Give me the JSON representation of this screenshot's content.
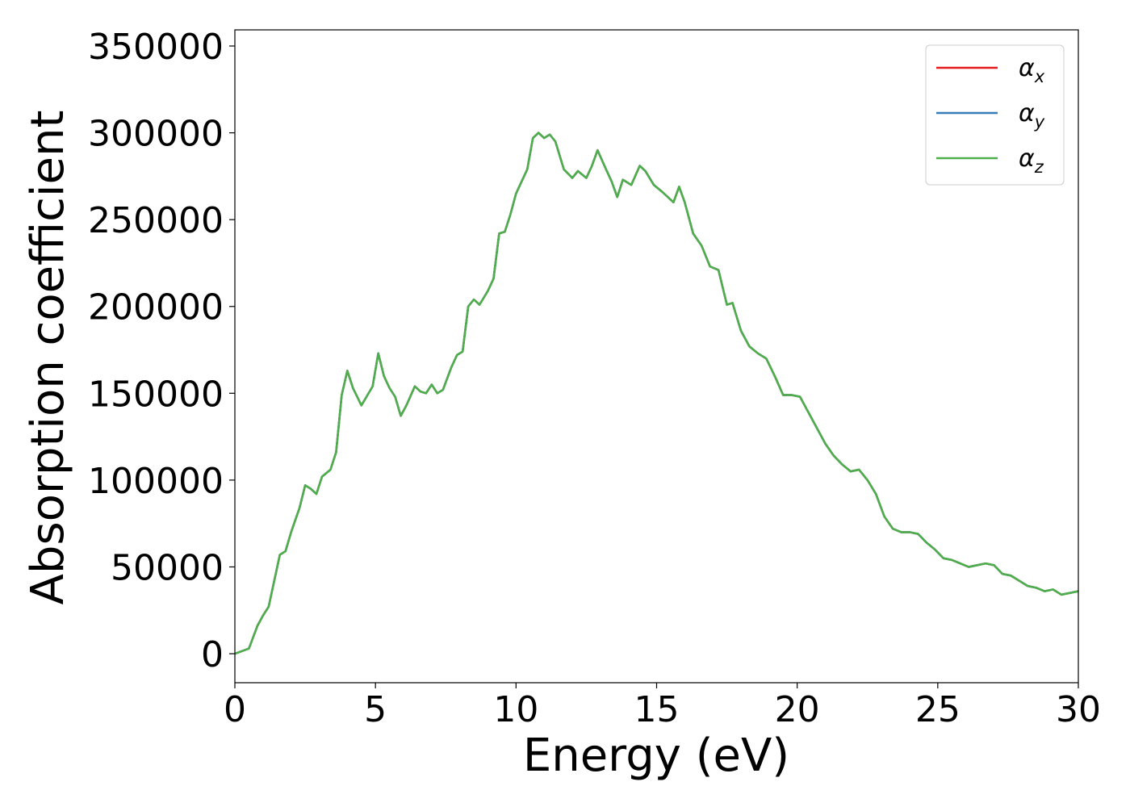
{
  "chart_data": {
    "type": "line",
    "xlabel": "Energy (eV)",
    "ylabel": "Absorption coefficient",
    "x": [
      0,
      0.5,
      0.8,
      1.0,
      1.2,
      1.4,
      1.6,
      1.8,
      2.0,
      2.3,
      2.5,
      2.7,
      2.9,
      3.1,
      3.4,
      3.6,
      3.8,
      4.0,
      4.2,
      4.5,
      4.9,
      5.1,
      5.3,
      5.5,
      5.7,
      5.9,
      6.1,
      6.4,
      6.6,
      6.8,
      7.0,
      7.2,
      7.4,
      7.7,
      7.9,
      8.1,
      8.3,
      8.5,
      8.7,
      9.0,
      9.2,
      9.4,
      9.6,
      9.8,
      10.0,
      10.2,
      10.4,
      10.6,
      10.8,
      11.0,
      11.2,
      11.4,
      11.7,
      12.0,
      12.2,
      12.5,
      12.7,
      12.9,
      13.2,
      13.4,
      13.6,
      13.8,
      14.1,
      14.4,
      14.6,
      14.9,
      15.2,
      15.6,
      15.8,
      16.0,
      16.3,
      16.6,
      16.9,
      17.2,
      17.5,
      17.7,
      18.0,
      18.3,
      18.6,
      18.9,
      19.2,
      19.5,
      19.8,
      20.1,
      20.4,
      20.7,
      21.0,
      21.3,
      21.6,
      21.9,
      22.2,
      22.5,
      22.8,
      23.1,
      23.4,
      23.7,
      24.0,
      24.3,
      24.6,
      24.9,
      25.2,
      25.5,
      25.8,
      26.1,
      26.4,
      26.7,
      27.0,
      27.3,
      27.6,
      27.9,
      28.2,
      28.5,
      28.8,
      29.1,
      29.4,
      29.7,
      30.0
    ],
    "series": [
      {
        "name": "αx",
        "color": "#e41a1c",
        "values": [
          0,
          3000,
          16000,
          22000,
          27000,
          42000,
          57000,
          59000,
          70000,
          84000,
          97000,
          95000,
          92000,
          102000,
          106000,
          116000,
          149000,
          163000,
          153000,
          143000,
          154000,
          173000,
          160000,
          153000,
          148000,
          137000,
          143000,
          154000,
          151000,
          150000,
          155000,
          150000,
          152000,
          165000,
          172000,
          174000,
          200000,
          204000,
          201000,
          209000,
          216000,
          242000,
          243000,
          253000,
          265000,
          272000,
          279000,
          297000,
          300000,
          297000,
          299000,
          295000,
          279000,
          274000,
          278000,
          274000,
          281000,
          290000,
          279000,
          272000,
          263000,
          273000,
          270000,
          281000,
          278000,
          270000,
          266000,
          260000,
          269000,
          260000,
          242000,
          235000,
          223000,
          221000,
          201000,
          202000,
          186000,
          177000,
          173000,
          170000,
          160000,
          149000,
          149000,
          148000,
          139000,
          130000,
          121000,
          114000,
          109000,
          105000,
          106000,
          100000,
          92000,
          79000,
          72000,
          70000,
          70000,
          69000,
          64000,
          60000,
          55000,
          54000,
          52000,
          50000,
          51000,
          52000,
          51000,
          46000,
          45000,
          42000,
          39000,
          38000,
          36000,
          37000,
          34000,
          35000,
          36000
        ]
      },
      {
        "name": "αy",
        "color": "#377eb8",
        "values": [
          0,
          3000,
          16000,
          22000,
          27000,
          42000,
          57000,
          59000,
          70000,
          84000,
          97000,
          95000,
          92000,
          102000,
          106000,
          116000,
          149000,
          163000,
          153000,
          143000,
          154000,
          173000,
          160000,
          153000,
          148000,
          137000,
          143000,
          154000,
          151000,
          150000,
          155000,
          150000,
          152000,
          165000,
          172000,
          174000,
          200000,
          204000,
          201000,
          209000,
          216000,
          242000,
          243000,
          253000,
          265000,
          272000,
          279000,
          297000,
          300000,
          297000,
          299000,
          295000,
          279000,
          274000,
          278000,
          274000,
          281000,
          290000,
          279000,
          272000,
          263000,
          273000,
          270000,
          281000,
          278000,
          270000,
          266000,
          260000,
          269000,
          260000,
          242000,
          235000,
          223000,
          221000,
          201000,
          202000,
          186000,
          177000,
          173000,
          170000,
          160000,
          149000,
          149000,
          148000,
          139000,
          130000,
          121000,
          114000,
          109000,
          105000,
          106000,
          100000,
          92000,
          79000,
          72000,
          70000,
          70000,
          69000,
          64000,
          60000,
          55000,
          54000,
          52000,
          50000,
          51000,
          52000,
          51000,
          46000,
          45000,
          42000,
          39000,
          38000,
          36000,
          37000,
          34000,
          35000,
          36000
        ]
      },
      {
        "name": "αz",
        "color": "#4daf4a",
        "values": [
          0,
          3000,
          16000,
          22000,
          27000,
          42000,
          57000,
          59000,
          70000,
          84000,
          97000,
          95000,
          92000,
          102000,
          106000,
          116000,
          149000,
          163000,
          153000,
          143000,
          154000,
          173000,
          160000,
          153000,
          148000,
          137000,
          143000,
          154000,
          151000,
          150000,
          155000,
          150000,
          152000,
          165000,
          172000,
          174000,
          200000,
          204000,
          201000,
          209000,
          216000,
          242000,
          243000,
          253000,
          265000,
          272000,
          279000,
          297000,
          300000,
          297000,
          299000,
          295000,
          279000,
          274000,
          278000,
          274000,
          281000,
          290000,
          279000,
          272000,
          263000,
          273000,
          270000,
          281000,
          278000,
          270000,
          266000,
          260000,
          269000,
          260000,
          242000,
          235000,
          223000,
          221000,
          201000,
          202000,
          186000,
          177000,
          173000,
          170000,
          160000,
          149000,
          149000,
          148000,
          139000,
          130000,
          121000,
          114000,
          109000,
          105000,
          106000,
          100000,
          92000,
          79000,
          72000,
          70000,
          70000,
          69000,
          64000,
          60000,
          55000,
          54000,
          52000,
          50000,
          51000,
          52000,
          51000,
          46000,
          45000,
          42000,
          39000,
          38000,
          36000,
          37000,
          34000,
          35000,
          36000
        ]
      }
    ],
    "xlim": [
      0,
      30
    ],
    "xticks": [
      0,
      5,
      10,
      15,
      20,
      25,
      30
    ],
    "ylim": [
      -16700,
      359300
    ],
    "yticks": [
      0,
      50000,
      100000,
      150000,
      200000,
      250000,
      300000,
      350000
    ],
    "grid": false,
    "legend": "upper right"
  }
}
